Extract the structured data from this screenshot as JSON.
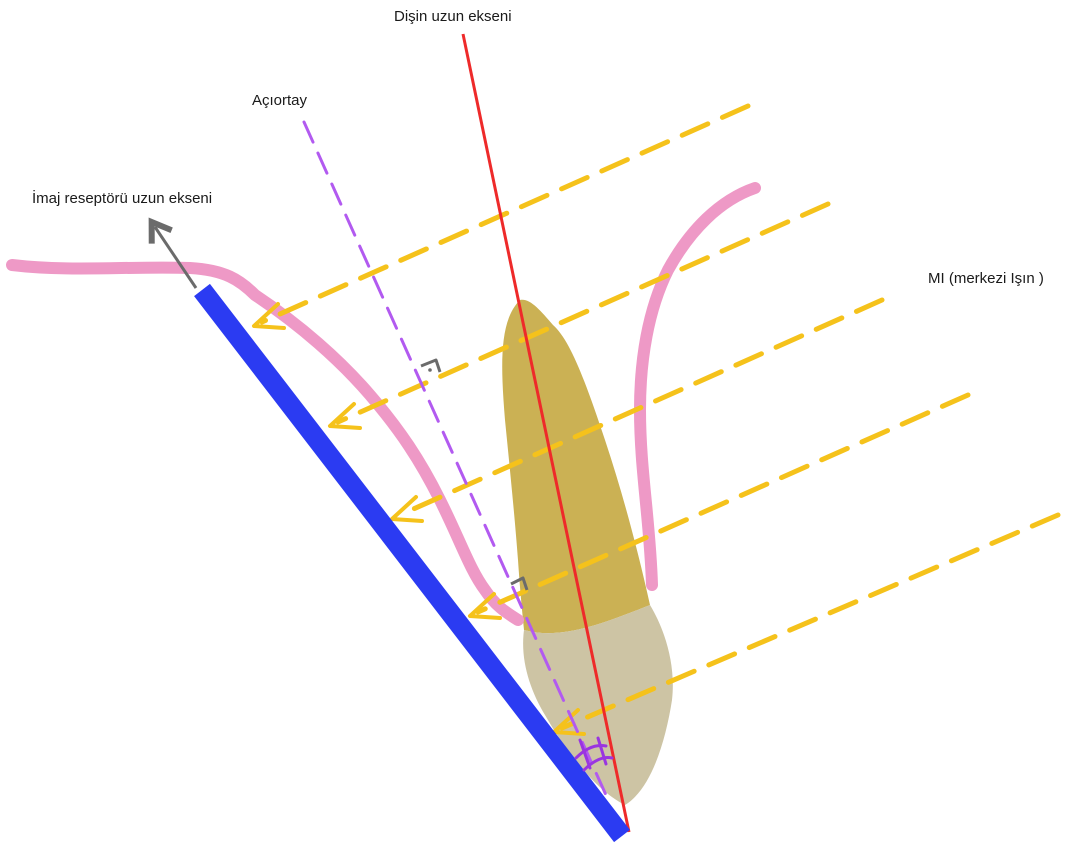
{
  "labels": {
    "tooth_long_axis": "Dişin uzun ekseni",
    "bisector": "Açıortay",
    "image_receptor_long_axis": "İmaj reseptörü uzun ekseni",
    "central_ray": "MI (merkezi Işın )"
  },
  "colors": {
    "receptor": "#2b3bf2",
    "tooth_axis": "#ee2a2a",
    "bisector": "#b25af0",
    "central_rays": "#f5c21b",
    "gingiva": "#ee99c6",
    "crown": "#cdc4a4",
    "root": "#cbb154",
    "arrow": "#6b6b6b",
    "right_angle_marker": "#6b6b6b"
  }
}
